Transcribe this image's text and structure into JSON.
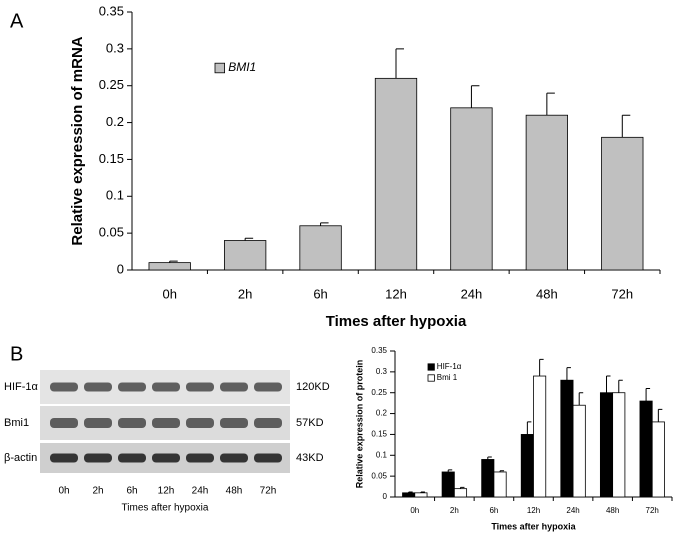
{
  "panel_labels": [
    "A",
    "B"
  ],
  "blot": {
    "rows": [
      {
        "label": "HIF-1α",
        "size": "120KD"
      },
      {
        "label": "Bmi1",
        "size": "57KD"
      },
      {
        "label": "β-actin",
        "size": "43KD"
      }
    ],
    "lanes": [
      "0h",
      "2h",
      "6h",
      "12h",
      "24h",
      "48h",
      "72h"
    ],
    "xlabel": "Times after hypoxia"
  },
  "chart_data": [
    {
      "type": "bar",
      "ylabel": "Relative expression of mRNA",
      "xlabel": "Times after hypoxia",
      "categories": [
        "0h",
        "2h",
        "6h",
        "12h",
        "24h",
        "48h",
        "72h"
      ],
      "series": [
        {
          "name": "BMI1",
          "color": "#c0c0c0",
          "values": [
            0.01,
            0.04,
            0.06,
            0.26,
            0.22,
            0.21,
            0.18
          ],
          "errors": [
            0.002,
            0.003,
            0.004,
            0.04,
            0.03,
            0.03,
            0.03
          ]
        }
      ],
      "ylim": [
        0,
        0.35
      ],
      "yticks": [
        0,
        0.05,
        0.1,
        0.15,
        0.2,
        0.25,
        0.3,
        0.35
      ]
    },
    {
      "type": "bar",
      "ylabel": "Relative expression of protein",
      "xlabel": "Times after hypoxia",
      "categories": [
        "0h",
        "2h",
        "6h",
        "12h",
        "24h",
        "48h",
        "72h"
      ],
      "series": [
        {
          "name": "HIF-1α",
          "color": "#000000",
          "values": [
            0.01,
            0.06,
            0.09,
            0.15,
            0.28,
            0.25,
            0.23
          ],
          "errors": [
            0.002,
            0.005,
            0.006,
            0.03,
            0.03,
            0.04,
            0.03
          ]
        },
        {
          "name": "Bmi 1",
          "color": "#ffffff",
          "values": [
            0.01,
            0.02,
            0.06,
            0.29,
            0.22,
            0.25,
            0.18
          ],
          "errors": [
            0.002,
            0.003,
            0.003,
            0.04,
            0.03,
            0.03,
            0.03
          ]
        }
      ],
      "ylim": [
        0,
        0.35
      ],
      "yticks": [
        0,
        0.05,
        0.1,
        0.15,
        0.2,
        0.25,
        0.3,
        0.35
      ]
    }
  ]
}
